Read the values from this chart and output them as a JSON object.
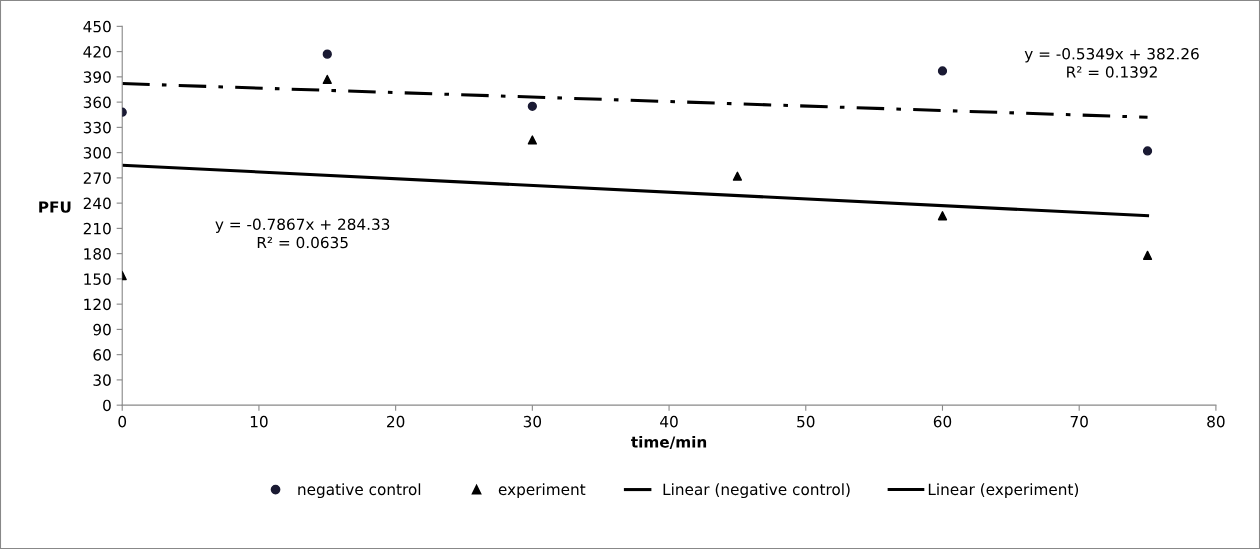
{
  "chart_data": {
    "type": "scatter",
    "xlabel": "time/min",
    "ylabel": "PFU",
    "xlim": [
      0,
      80
    ],
    "xticks": [
      0,
      10,
      20,
      30,
      40,
      50,
      60,
      70,
      80
    ],
    "ylim": [
      0,
      450
    ],
    "yticks": [
      0,
      30,
      60,
      90,
      120,
      150,
      180,
      210,
      240,
      270,
      300,
      330,
      360,
      390,
      420,
      450
    ],
    "grid": false,
    "legend": "bottom",
    "series": [
      {
        "name": "negative control",
        "marker": "circle",
        "color": "#1a1a33",
        "x": [
          0,
          15,
          30,
          60,
          75
        ],
        "values": [
          348,
          417,
          355,
          397,
          302
        ]
      },
      {
        "name": "experiment",
        "marker": "triangle",
        "color": "#000000",
        "x": [
          0,
          15,
          30,
          45,
          60,
          75
        ],
        "values": [
          154,
          387,
          315,
          272,
          225,
          178
        ]
      },
      {
        "name": "Linear (negative control)",
        "type": "line",
        "line_style": "dashed",
        "color": "#000000",
        "x": [
          0,
          75
        ],
        "values": [
          382,
          342
        ]
      },
      {
        "name": "Linear (experiment)",
        "type": "line",
        "line_style": "solid",
        "color": "#000000",
        "x": [
          0,
          75
        ],
        "values": [
          285,
          225
        ]
      }
    ],
    "annotations": [
      "y = -0.5349x + 382.26\nR² = 0.1392",
      "y = -0.7867x + 284.33\nR² = 0.0635"
    ]
  }
}
